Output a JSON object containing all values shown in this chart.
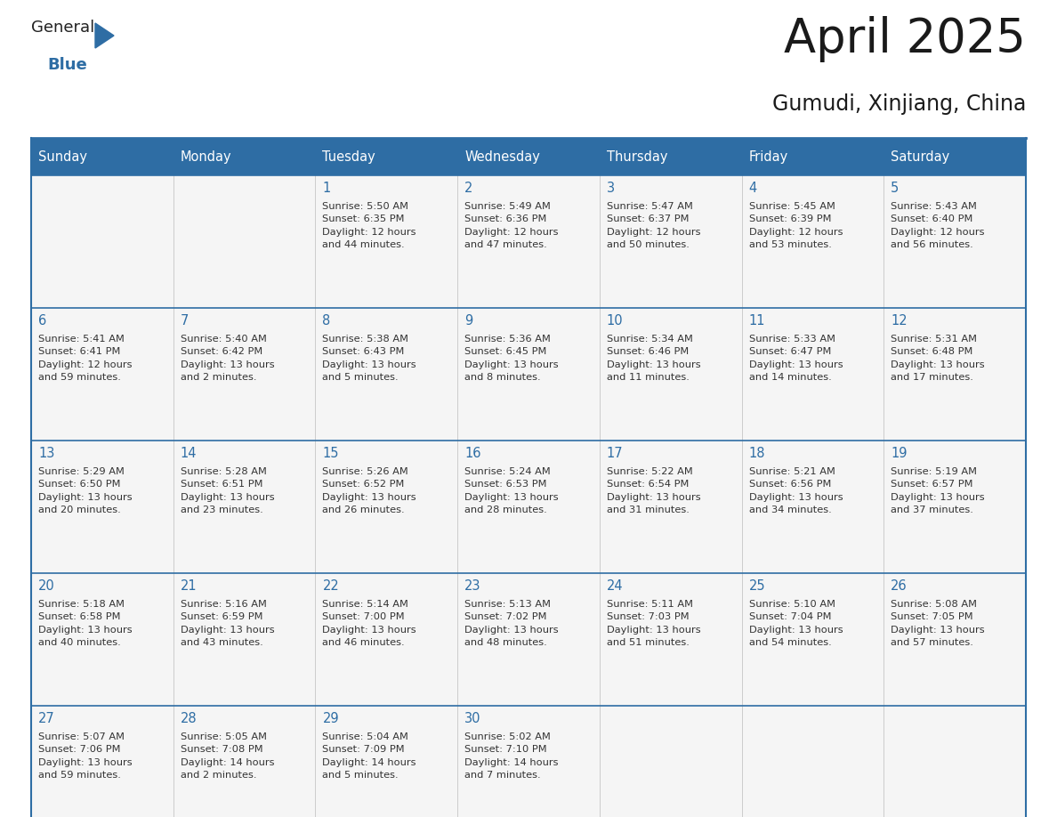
{
  "title": "April 2025",
  "subtitle": "Gumudi, Xinjiang, China",
  "days_of_week": [
    "Sunday",
    "Monday",
    "Tuesday",
    "Wednesday",
    "Thursday",
    "Friday",
    "Saturday"
  ],
  "header_bg_color": "#2E6DA4",
  "header_text_color": "#FFFFFF",
  "cell_bg_color": "#F5F5F5",
  "cell_bg_color_white": "#FFFFFF",
  "border_color": "#2E6DA4",
  "title_color": "#1a1a1a",
  "subtitle_color": "#1a1a1a",
  "day_number_color": "#2E6DA4",
  "cell_text_color": "#333333",
  "weeks": [
    [
      {
        "day": null,
        "info": ""
      },
      {
        "day": null,
        "info": ""
      },
      {
        "day": 1,
        "info": "Sunrise: 5:50 AM\nSunset: 6:35 PM\nDaylight: 12 hours\nand 44 minutes."
      },
      {
        "day": 2,
        "info": "Sunrise: 5:49 AM\nSunset: 6:36 PM\nDaylight: 12 hours\nand 47 minutes."
      },
      {
        "day": 3,
        "info": "Sunrise: 5:47 AM\nSunset: 6:37 PM\nDaylight: 12 hours\nand 50 minutes."
      },
      {
        "day": 4,
        "info": "Sunrise: 5:45 AM\nSunset: 6:39 PM\nDaylight: 12 hours\nand 53 minutes."
      },
      {
        "day": 5,
        "info": "Sunrise: 5:43 AM\nSunset: 6:40 PM\nDaylight: 12 hours\nand 56 minutes."
      }
    ],
    [
      {
        "day": 6,
        "info": "Sunrise: 5:41 AM\nSunset: 6:41 PM\nDaylight: 12 hours\nand 59 minutes."
      },
      {
        "day": 7,
        "info": "Sunrise: 5:40 AM\nSunset: 6:42 PM\nDaylight: 13 hours\nand 2 minutes."
      },
      {
        "day": 8,
        "info": "Sunrise: 5:38 AM\nSunset: 6:43 PM\nDaylight: 13 hours\nand 5 minutes."
      },
      {
        "day": 9,
        "info": "Sunrise: 5:36 AM\nSunset: 6:45 PM\nDaylight: 13 hours\nand 8 minutes."
      },
      {
        "day": 10,
        "info": "Sunrise: 5:34 AM\nSunset: 6:46 PM\nDaylight: 13 hours\nand 11 minutes."
      },
      {
        "day": 11,
        "info": "Sunrise: 5:33 AM\nSunset: 6:47 PM\nDaylight: 13 hours\nand 14 minutes."
      },
      {
        "day": 12,
        "info": "Sunrise: 5:31 AM\nSunset: 6:48 PM\nDaylight: 13 hours\nand 17 minutes."
      }
    ],
    [
      {
        "day": 13,
        "info": "Sunrise: 5:29 AM\nSunset: 6:50 PM\nDaylight: 13 hours\nand 20 minutes."
      },
      {
        "day": 14,
        "info": "Sunrise: 5:28 AM\nSunset: 6:51 PM\nDaylight: 13 hours\nand 23 minutes."
      },
      {
        "day": 15,
        "info": "Sunrise: 5:26 AM\nSunset: 6:52 PM\nDaylight: 13 hours\nand 26 minutes."
      },
      {
        "day": 16,
        "info": "Sunrise: 5:24 AM\nSunset: 6:53 PM\nDaylight: 13 hours\nand 28 minutes."
      },
      {
        "day": 17,
        "info": "Sunrise: 5:22 AM\nSunset: 6:54 PM\nDaylight: 13 hours\nand 31 minutes."
      },
      {
        "day": 18,
        "info": "Sunrise: 5:21 AM\nSunset: 6:56 PM\nDaylight: 13 hours\nand 34 minutes."
      },
      {
        "day": 19,
        "info": "Sunrise: 5:19 AM\nSunset: 6:57 PM\nDaylight: 13 hours\nand 37 minutes."
      }
    ],
    [
      {
        "day": 20,
        "info": "Sunrise: 5:18 AM\nSunset: 6:58 PM\nDaylight: 13 hours\nand 40 minutes."
      },
      {
        "day": 21,
        "info": "Sunrise: 5:16 AM\nSunset: 6:59 PM\nDaylight: 13 hours\nand 43 minutes."
      },
      {
        "day": 22,
        "info": "Sunrise: 5:14 AM\nSunset: 7:00 PM\nDaylight: 13 hours\nand 46 minutes."
      },
      {
        "day": 23,
        "info": "Sunrise: 5:13 AM\nSunset: 7:02 PM\nDaylight: 13 hours\nand 48 minutes."
      },
      {
        "day": 24,
        "info": "Sunrise: 5:11 AM\nSunset: 7:03 PM\nDaylight: 13 hours\nand 51 minutes."
      },
      {
        "day": 25,
        "info": "Sunrise: 5:10 AM\nSunset: 7:04 PM\nDaylight: 13 hours\nand 54 minutes."
      },
      {
        "day": 26,
        "info": "Sunrise: 5:08 AM\nSunset: 7:05 PM\nDaylight: 13 hours\nand 57 minutes."
      }
    ],
    [
      {
        "day": 27,
        "info": "Sunrise: 5:07 AM\nSunset: 7:06 PM\nDaylight: 13 hours\nand 59 minutes."
      },
      {
        "day": 28,
        "info": "Sunrise: 5:05 AM\nSunset: 7:08 PM\nDaylight: 14 hours\nand 2 minutes."
      },
      {
        "day": 29,
        "info": "Sunrise: 5:04 AM\nSunset: 7:09 PM\nDaylight: 14 hours\nand 5 minutes."
      },
      {
        "day": 30,
        "info": "Sunrise: 5:02 AM\nSunset: 7:10 PM\nDaylight: 14 hours\nand 7 minutes."
      },
      {
        "day": null,
        "info": ""
      },
      {
        "day": null,
        "info": ""
      },
      {
        "day": null,
        "info": ""
      }
    ]
  ]
}
